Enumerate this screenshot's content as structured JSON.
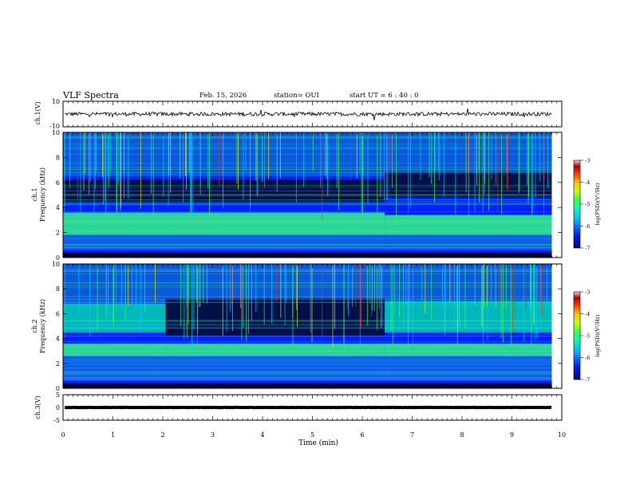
{
  "header": {
    "title": "VLF Spectra",
    "date": "Feb. 15, 2026",
    "station": "station= OUI",
    "start": "start  UT =   6 : 40 : 0"
  },
  "colorbar": {
    "label": "log(PSD)(V²/Hz)",
    "ticks": [
      "-3",
      "-4",
      "-5",
      "-6",
      "-7"
    ],
    "colors": [
      "#00008c",
      "#0020ff",
      "#00b4ff",
      "#00ffb0",
      "#40ff40",
      "#c8ff00",
      "#ffc800",
      "#ff4000",
      "#b00000",
      "#ffc8d0"
    ]
  },
  "chart_data": [
    {
      "type": "line",
      "panel": "ch.1 waveform",
      "ylabel": "ch.1(V)",
      "yticks": [
        "10",
        "-10"
      ],
      "ylim": [
        -10,
        10
      ],
      "xlim": [
        0,
        10
      ],
      "baseline": 0,
      "noise_amplitude": 1.5
    },
    {
      "type": "heatmap",
      "panel": "ch.1 spectrogram",
      "ylabel": "ch.1",
      "ylabel2": "Frequency (kHz)",
      "yticks": [
        "10",
        "8",
        "6",
        "4",
        "2",
        "0"
      ],
      "ylim": [
        0,
        10
      ],
      "xlim": [
        0,
        10
      ],
      "zlim": [
        -7,
        -3
      ],
      "segments": [
        {
          "t_start": 0,
          "t_end": 6.45,
          "band_green_khz": [
            1.8,
            3.6
          ],
          "dark_band_khz": [
            4.4,
            6.2
          ]
        },
        {
          "t_start": 6.45,
          "t_end": 9.8,
          "band_green_khz": [
            1.8,
            3.4
          ],
          "dark_band_khz": [
            4.8,
            6.8
          ]
        }
      ]
    },
    {
      "type": "heatmap",
      "panel": "ch.2 spectrogram",
      "ylabel": "ch.2",
      "ylabel2": "Frequency (kHz)",
      "yticks": [
        "10",
        "8",
        "6",
        "4",
        "2",
        "0"
      ],
      "ylim": [
        0,
        10
      ],
      "xlim": [
        0,
        10
      ],
      "zlim": [
        -7,
        -3
      ],
      "segments": [
        {
          "t_start": 0,
          "t_end": 2.05,
          "band_green_khz": [
            2.6,
            3.6
          ],
          "upper_band_khz": [
            4.5,
            6.8
          ]
        },
        {
          "t_start": 2.05,
          "t_end": 6.45,
          "band_green_khz": [
            2.6,
            3.6
          ],
          "upper_band_khz": null
        },
        {
          "t_start": 6.45,
          "t_end": 9.8,
          "band_green_khz": [
            2.6,
            3.6
          ],
          "upper_band_khz": [
            4.5,
            7.0
          ]
        }
      ]
    },
    {
      "type": "line",
      "panel": "ch.3 waveform",
      "ylabel": "ch.3(V)",
      "yticks": [
        "5",
        "0",
        "-5"
      ],
      "ylim": [
        -5,
        5
      ],
      "xlim": [
        0,
        10
      ],
      "baseline": 0,
      "noise_amplitude": 0.3
    }
  ],
  "xaxis": {
    "label": "Time (min)",
    "ticks": [
      "0",
      "1",
      "2",
      "3",
      "4",
      "5",
      "6",
      "7",
      "8",
      "9",
      "10"
    ],
    "xlim": [
      0,
      10
    ],
    "data_end_min": 9.8
  }
}
